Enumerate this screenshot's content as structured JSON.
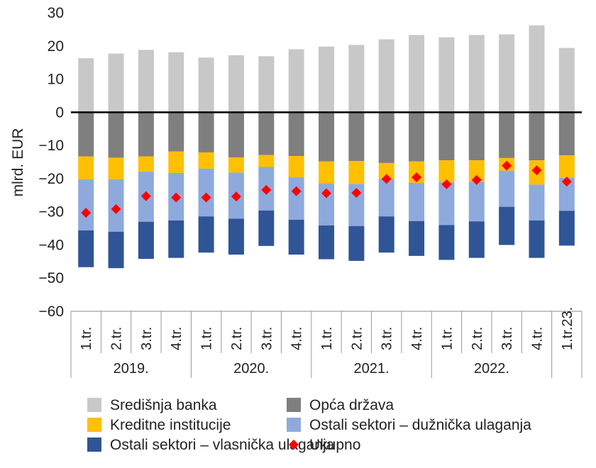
{
  "chart_data": {
    "type": "bar",
    "stacked": true,
    "ylabel": "mlrd. EUR",
    "ylim": [
      -60,
      30
    ],
    "yticks": [
      30,
      20,
      10,
      0,
      -10,
      -20,
      -30,
      -40,
      -50,
      -60
    ],
    "categories": [
      "1.tr.",
      "2.tr.",
      "3.tr.",
      "4.tr.",
      "1.tr.",
      "2.tr.",
      "3.tr.",
      "4.tr.",
      "1.tr.",
      "2.tr.",
      "3.tr.",
      "4.tr.",
      "1.tr.",
      "2.tr.",
      "3.tr.",
      "4.tr.",
      "1.tr.23."
    ],
    "groups": [
      {
        "label": "2019.",
        "count": 4
      },
      {
        "label": "2020.",
        "count": 4
      },
      {
        "label": "2021.",
        "count": 4
      },
      {
        "label": "2022.",
        "count": 4
      },
      {
        "label": "",
        "count": 1
      }
    ],
    "series": [
      {
        "name": "Središnja banka",
        "color": "#c8c8c8",
        "kind": "bar",
        "values": [
          16.3,
          17.7,
          18.8,
          18.1,
          16.5,
          17.2,
          16.9,
          19.0,
          19.8,
          20.3,
          22.0,
          23.3,
          22.6,
          23.3,
          23.5,
          26.2,
          19.4
        ]
      },
      {
        "name": "Opća država",
        "color": "#7f7f7f",
        "kind": "bar",
        "values": [
          -13.3,
          -13.7,
          -13.3,
          -11.8,
          -12.1,
          -13.6,
          -12.9,
          -13.2,
          -14.8,
          -14.7,
          -15.3,
          -14.8,
          -14.5,
          -14.5,
          -13.8,
          -14.5,
          -13.0
        ]
      },
      {
        "name": "Kreditne institucije",
        "color": "#ffc000",
        "kind": "bar",
        "values": [
          -6.9,
          -6.5,
          -4.6,
          -6.5,
          -4.9,
          -4.6,
          -3.6,
          -6.4,
          -6.6,
          -6.9,
          -4.8,
          -6.5,
          -6.6,
          -6.4,
          -3.8,
          -7.3,
          -6.8
        ]
      },
      {
        "name": "Ostali sektori – dužnička ulaganja",
        "color": "#8eaadc",
        "kind": "bar",
        "values": [
          -15.4,
          -15.8,
          -15.1,
          -14.3,
          -14.4,
          -13.9,
          -13.1,
          -12.8,
          -12.7,
          -12.7,
          -11.3,
          -11.5,
          -12.9,
          -12.0,
          -10.9,
          -10.8,
          -9.9
        ]
      },
      {
        "name": "Ostali sektori – vlasnička ulaganja",
        "color": "#2f5597",
        "kind": "bar",
        "values": [
          -11.1,
          -11.0,
          -11.2,
          -11.3,
          -10.9,
          -10.8,
          -10.7,
          -10.5,
          -10.2,
          -10.5,
          -10.9,
          -10.5,
          -10.5,
          -11.0,
          -11.5,
          -11.3,
          -10.5
        ]
      },
      {
        "name": "Ukupno",
        "color": "#ff0000",
        "kind": "marker",
        "values": [
          -30.3,
          -29.2,
          -25.3,
          -25.7,
          -25.7,
          -25.4,
          -23.4,
          -23.8,
          -24.4,
          -24.3,
          -20.1,
          -19.6,
          -21.7,
          -20.4,
          -16.1,
          -17.5,
          -20.9
        ]
      }
    ],
    "legend": {
      "position": "bottom",
      "order": [
        "Središnja banka",
        "Opća država",
        "Kreditne institucije",
        "Ostali sektori – dužnička ulaganja",
        "Ostali sektori – vlasnička ulaganja",
        "Ukupno"
      ]
    },
    "grid": false
  }
}
